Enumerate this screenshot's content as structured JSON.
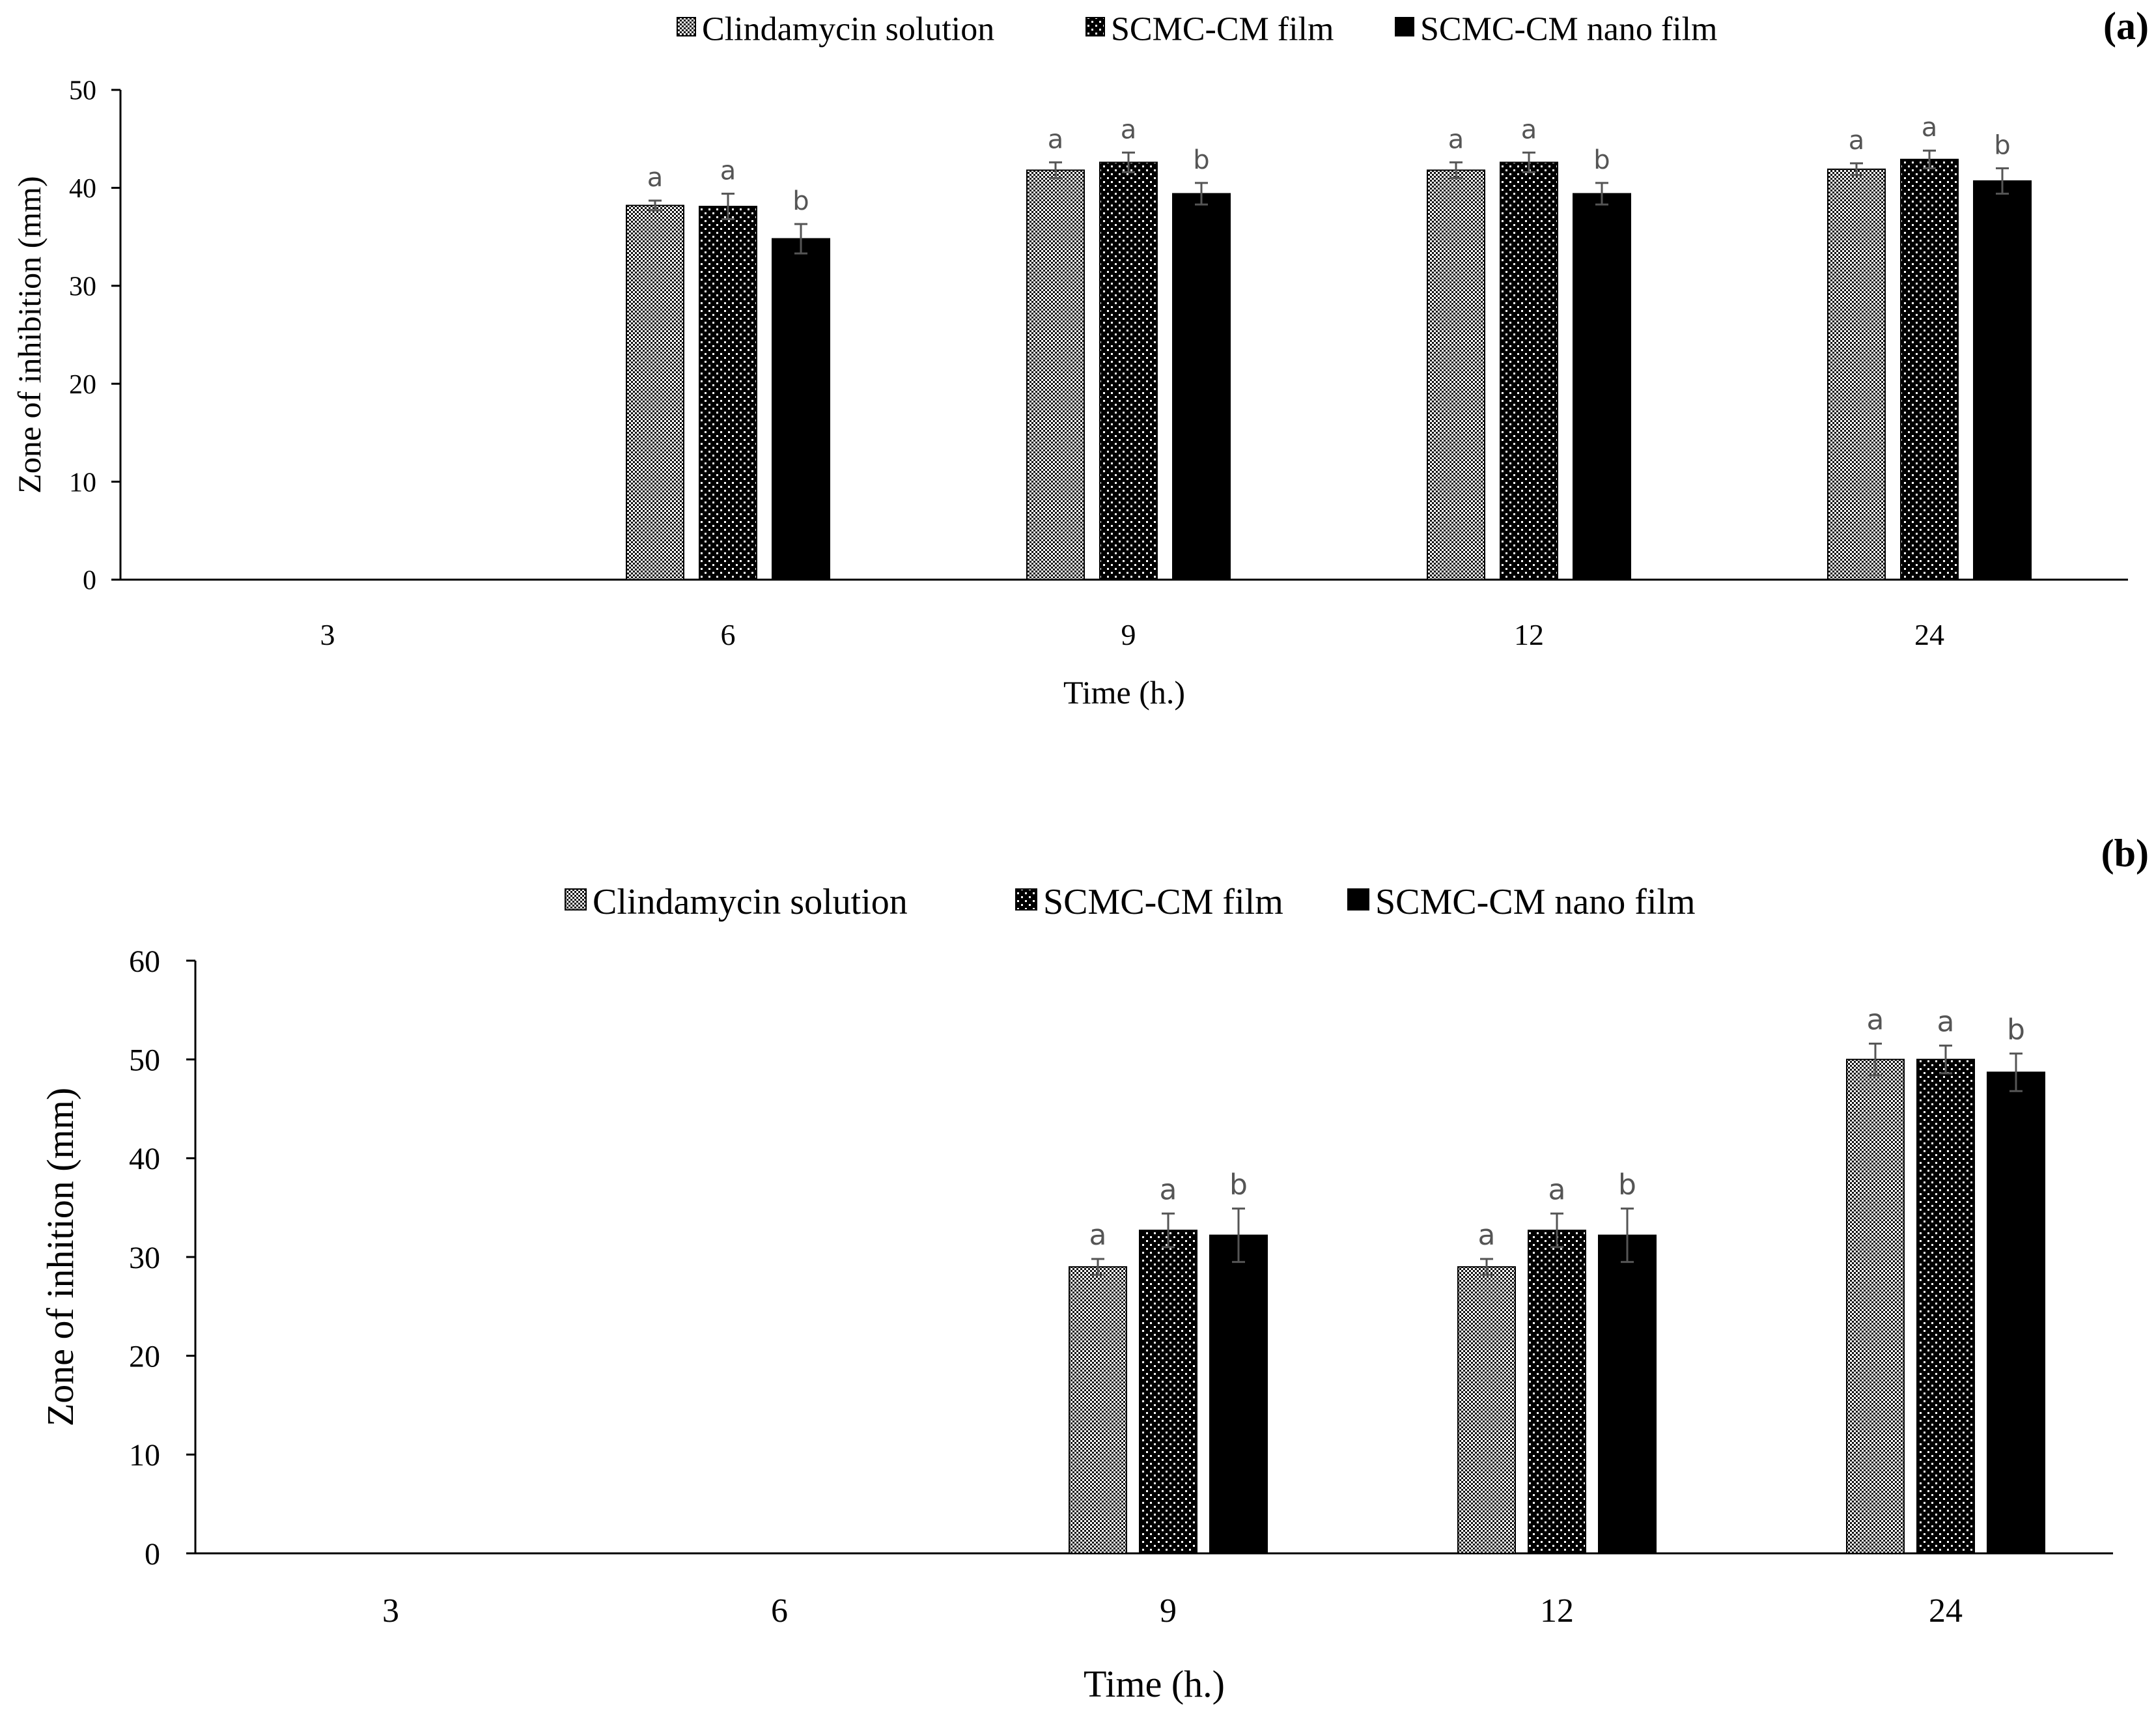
{
  "chart_data": [
    {
      "panel_label": "(a)",
      "type": "bar",
      "categories": [
        "3",
        "6",
        "9",
        "12",
        "24"
      ],
      "xlabel": "Time (h.)",
      "ylabel": "Zone of inhibition (mm)",
      "ylim": [
        0,
        50
      ],
      "yticks": [
        0,
        10,
        20,
        30,
        40,
        50
      ],
      "legend_position": "top-center",
      "series": [
        {
          "name": "Clindamycin solution",
          "pattern": "fine-dots",
          "values": [
            0,
            38.2,
            41.8,
            41.8,
            41.9
          ],
          "errors": [
            0,
            0.5,
            0.8,
            0.8,
            0.6
          ],
          "labels": [
            "",
            "a",
            "a",
            "a",
            "a"
          ]
        },
        {
          "name": "SCMC-CM film",
          "pattern": "coarse-dots",
          "values": [
            0,
            38.1,
            42.6,
            42.6,
            42.9
          ],
          "errors": [
            0,
            1.3,
            1.0,
            1.0,
            0.9
          ],
          "labels": [
            "",
            "a",
            "a",
            "a",
            "a"
          ]
        },
        {
          "name": "SCMC-CM nano film",
          "pattern": "solid",
          "values": [
            0,
            34.8,
            39.4,
            39.4,
            40.7
          ],
          "errors": [
            0,
            1.5,
            1.1,
            1.1,
            1.3
          ],
          "labels": [
            "",
            "b",
            "b",
            "b",
            "b"
          ]
        }
      ]
    },
    {
      "panel_label": "(b)",
      "type": "bar",
      "categories": [
        "3",
        "6",
        "9",
        "12",
        "24"
      ],
      "xlabel": "Time (h.)",
      "ylabel": "Zone of inhition (mm)",
      "ylim": [
        0,
        60
      ],
      "yticks": [
        0,
        10,
        20,
        30,
        40,
        50,
        60
      ],
      "legend_position": "top-center",
      "series": [
        {
          "name": "Clindamycin solution",
          "pattern": "fine-dots",
          "values": [
            0,
            0,
            29.0,
            29.0,
            50.0
          ],
          "errors": [
            0,
            0,
            0.8,
            0.8,
            1.6
          ],
          "labels": [
            "",
            "",
            "a",
            "a",
            "a"
          ]
        },
        {
          "name": "SCMC-CM film",
          "pattern": "coarse-dots",
          "values": [
            0,
            0,
            32.7,
            32.7,
            50.0
          ],
          "errors": [
            0,
            0,
            1.7,
            1.7,
            1.4
          ],
          "labels": [
            "",
            "",
            "a",
            "a",
            "a"
          ]
        },
        {
          "name": "SCMC-CM nano film",
          "pattern": "solid",
          "values": [
            0,
            0,
            32.2,
            32.2,
            48.7
          ],
          "errors": [
            0,
            0,
            2.7,
            2.7,
            1.9
          ],
          "labels": [
            "",
            "",
            "b",
            "b",
            "b"
          ]
        }
      ]
    }
  ],
  "colors": {
    "axis": "#000000",
    "error_bar": "#555555",
    "sig_label": "#555555",
    "bar_solid": "#000000"
  }
}
